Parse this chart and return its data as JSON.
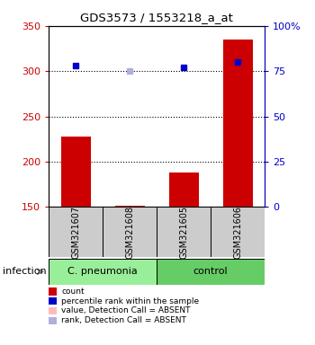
{
  "title": "GDS3573 / 1553218_a_at",
  "samples": [
    "GSM321607",
    "GSM321608",
    "GSM321605",
    "GSM321606"
  ],
  "bar_values": [
    228,
    151,
    188,
    335
  ],
  "bar_color": "#cc0000",
  "percentile_ranks": [
    78,
    75,
    77,
    80
  ],
  "percentile_present": [
    true,
    false,
    true,
    true
  ],
  "percentile_color_present": "#0000cc",
  "percentile_color_absent": "#b0b0dd",
  "ylim_left": [
    150,
    350
  ],
  "ylim_right": [
    0,
    100
  ],
  "yticks_left": [
    150,
    200,
    250,
    300,
    350
  ],
  "yticks_right": [
    0,
    25,
    50,
    75,
    100
  ],
  "ytick_labels_right": [
    "0",
    "25",
    "50",
    "75",
    "100%"
  ],
  "groups": [
    {
      "label": "C. pneumonia",
      "samples": [
        0,
        1
      ],
      "color": "#99ee99"
    },
    {
      "label": "control",
      "samples": [
        2,
        3
      ],
      "color": "#66cc66"
    }
  ],
  "bar_width": 0.55,
  "background_sample_box": "#cccccc",
  "legend_items": [
    {
      "label": "count",
      "color": "#cc0000"
    },
    {
      "label": "percentile rank within the sample",
      "color": "#0000cc"
    },
    {
      "label": "value, Detection Call = ABSENT",
      "color": "#ffbbbb"
    },
    {
      "label": "rank, Detection Call = ABSENT",
      "color": "#b0b0dd"
    }
  ]
}
